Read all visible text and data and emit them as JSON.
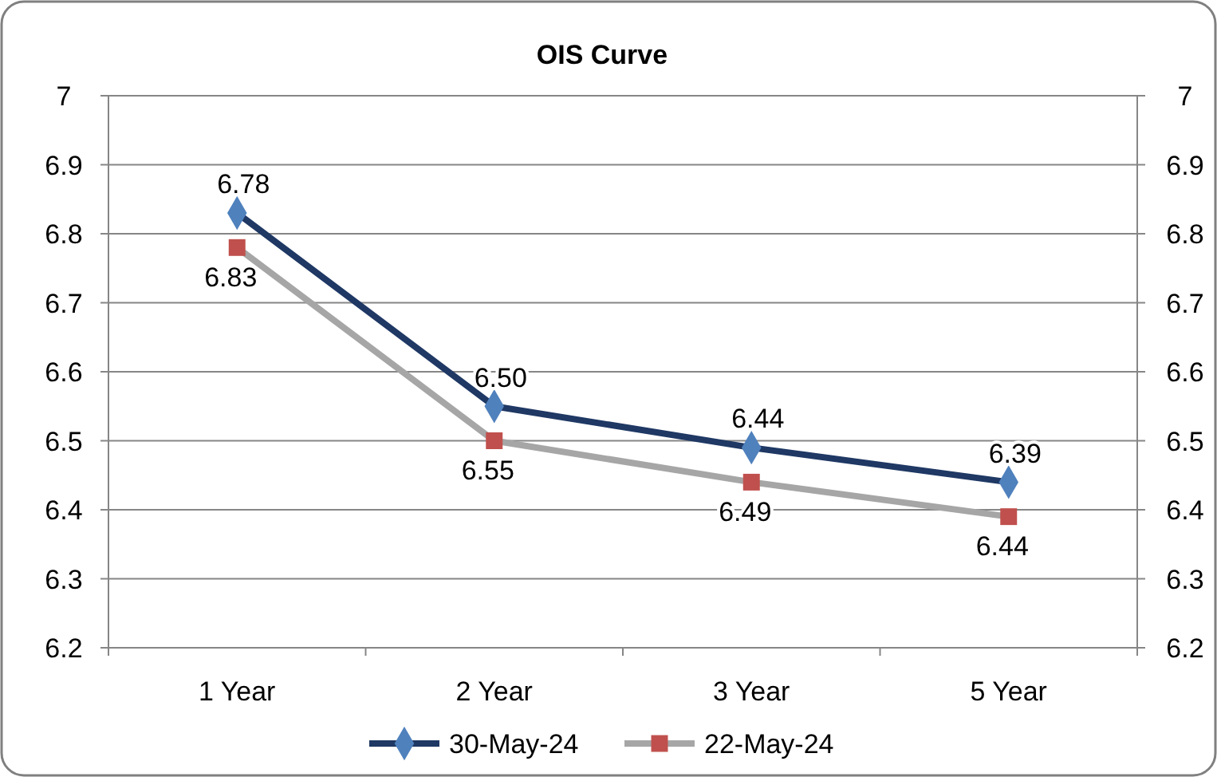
{
  "chart_data": {
    "type": "line",
    "title": "OIS Curve",
    "categories": [
      "1 Year",
      "2 Year",
      "3 Year",
      "5 Year"
    ],
    "series": [
      {
        "name": "30-May-24",
        "color": "#1f3864",
        "colors": [
          "#4f81bd",
          "#4f81bd",
          "#4f81bd",
          "#4f81bd"
        ],
        "marker": "diamond",
        "values": [
          6.83,
          6.55,
          6.49,
          6.44
        ],
        "value_labels": [
          "6.83",
          "6.55",
          "6.49",
          "6.44"
        ]
      },
      {
        "name": "22-May-24",
        "color": "#a6a6a6",
        "colors": [
          "#c0504d",
          "#c0504d",
          "#c0504d",
          "#c0504d"
        ],
        "marker": "square",
        "values": [
          6.78,
          6.5,
          6.44,
          6.39
        ],
        "value_labels": [
          "6.78",
          "6.50",
          "6.44",
          "6.39"
        ]
      }
    ],
    "ylim": [
      6.2,
      7
    ],
    "yticks": [
      6.2,
      6.3,
      6.4,
      6.5,
      6.6,
      6.7,
      6.8,
      6.9,
      7
    ],
    "y2lim": [
      6.2,
      7
    ],
    "y2ticks": [
      6.2,
      6.3,
      6.4,
      6.5,
      6.6,
      6.7,
      6.8,
      6.9,
      7
    ],
    "grid": "y",
    "legend": "bottom",
    "line_style": "solid"
  }
}
